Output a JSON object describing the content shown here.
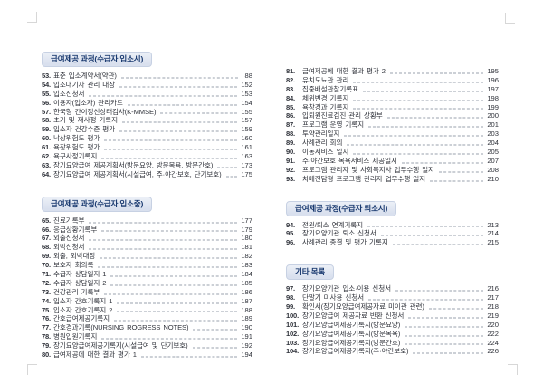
{
  "colors": {
    "section_header_bg": "#d9e0ee",
    "section_header_text": "#1a3a70",
    "body_text": "#2f323a",
    "leader_dots": "#9aa2ad"
  },
  "pages": [
    {
      "side": "left",
      "sections": [
        {
          "title": "급여제공 과정(수급자 입소시)",
          "items": [
            {
              "no": "53.",
              "title": "표준 입소계약서(약관)",
              "page": "88"
            },
            {
              "no": "54.",
              "title": "입소대기자 관리 대장",
              "page": "152"
            },
            {
              "no": "55.",
              "title": "입소신청서",
              "page": "153"
            },
            {
              "no": "56.",
              "title": "이용자(입소자) 관리카드",
              "page": "154"
            },
            {
              "no": "57.",
              "title": "한국형 간이정신상태검사(K-MMSE)",
              "page": "155"
            },
            {
              "no": "58.",
              "title": "초기 및 재사정 기록지",
              "page": "157"
            },
            {
              "no": "59.",
              "title": "입소자 건강수준 평가",
              "page": "159"
            },
            {
              "no": "60.",
              "title": "낙상위험도 평가",
              "page": "160"
            },
            {
              "no": "61.",
              "title": "욕창위험도 평가",
              "page": "161"
            },
            {
              "no": "62.",
              "title": "욕구사정기록지",
              "page": "163"
            },
            {
              "no": "63.",
              "title": "장기요양급여 제공계획서(방문요양, 방문목욕, 방문간호)",
              "page": "173"
            },
            {
              "no": "64.",
              "title": "장기요양급여 제공계획서(시설급여, 주·야간보호, 단기보호)",
              "page": "175"
            }
          ]
        },
        {
          "title": "급여제공 과정(수급자 입소중)",
          "items": [
            {
              "no": "65.",
              "title": "진료기록부",
              "page": "177"
            },
            {
              "no": "66.",
              "title": "응급상황기록부",
              "page": "179"
            },
            {
              "no": "67.",
              "title": "외출신청서",
              "page": "180"
            },
            {
              "no": "68.",
              "title": "외박신청서",
              "page": "181"
            },
            {
              "no": "69.",
              "title": "외출, 외박대장",
              "page": "182"
            },
            {
              "no": "70.",
              "title": "보호자 회의록",
              "page": "183"
            },
            {
              "no": "71.",
              "title": "수급자 상담일지 1",
              "page": "184"
            },
            {
              "no": "72.",
              "title": "수급자 상담일지 2",
              "page": "185"
            },
            {
              "no": "73.",
              "title": "건강관리 기록부",
              "page": "186"
            },
            {
              "no": "74.",
              "title": "입소자 간호기록지 1",
              "page": "187"
            },
            {
              "no": "75.",
              "title": "입소자 간호기록지 2",
              "page": "188"
            },
            {
              "no": "76.",
              "title": "간호급여제공기록지",
              "page": "189"
            },
            {
              "no": "77.",
              "title": "간호경과기록(NURSING ROGRESS NOTES)",
              "page": "190"
            },
            {
              "no": "78.",
              "title": "병원입원기록지",
              "page": "191"
            },
            {
              "no": "79.",
              "title": "장기요양급여제공기록지(시설급여 및 단기보호)",
              "page": "192"
            },
            {
              "no": "80.",
              "title": "급여제공에 대한 결과 평가 1",
              "page": "194"
            }
          ]
        }
      ]
    },
    {
      "side": "right",
      "sections": [
        {
          "title": "",
          "items": [
            {
              "no": "81.",
              "title": "급여제공에 대한 결과 평가 2",
              "page": "195"
            },
            {
              "no": "82.",
              "title": "유치도뇨관 관리",
              "page": "196"
            },
            {
              "no": "83.",
              "title": "집중배설관찰기록표",
              "page": "197"
            },
            {
              "no": "84.",
              "title": "체위변경 기록지",
              "page": "198"
            },
            {
              "no": "85.",
              "title": "욕창경과 기록지",
              "page": "199"
            },
            {
              "no": "86.",
              "title": "입퇴원진료검진 관리 상황부",
              "page": "200"
            },
            {
              "no": "87.",
              "title": "프로그램 운영 기록지",
              "page": "201"
            },
            {
              "no": "88.",
              "title": "투약관리일지",
              "page": "203"
            },
            {
              "no": "89.",
              "title": "사례관리 회의",
              "page": "204"
            },
            {
              "no": "90.",
              "title": "이동서비스 일지",
              "page": "205"
            },
            {
              "no": "91.",
              "title": "주·야간보호 목욕서비스 제공일지",
              "page": "207"
            },
            {
              "no": "92.",
              "title": "프로그램 관리자 및 사회복지사 업무수행 일지",
              "page": "208"
            },
            {
              "no": "93.",
              "title": "치매전담형 프로그램 관리자 업무수행 일지",
              "page": "210"
            }
          ]
        },
        {
          "title": "급여제공 과정(수급자 퇴소시)",
          "items": [
            {
              "no": "94.",
              "title": "전원/퇴소 연계기록지",
              "page": "213"
            },
            {
              "no": "95.",
              "title": "장기요양기관 퇴소 신청서",
              "page": "214"
            },
            {
              "no": "96.",
              "title": "사례관리 종결 및 평가 기록지",
              "page": "215"
            }
          ]
        },
        {
          "title": "기타 목록",
          "items": [
            {
              "no": "97.",
              "title": "장기요양기관 입소·이용 신청서",
              "page": "216"
            },
            {
              "no": "98.",
              "title": "단말기 미사용 신청서",
              "page": "217"
            },
            {
              "no": "99.",
              "title": "확인서(장기요양급여제공자료 미이관 관련)",
              "page": "218"
            },
            {
              "no": "100.",
              "title": "장기요양급여 제공자료 반환 신청서",
              "page": "219"
            },
            {
              "no": "101.",
              "title": "장기요양급여제공기록지(방문요양)",
              "page": "220"
            },
            {
              "no": "102.",
              "title": "장기요양급여제공기록지(방문목욕)",
              "page": "222"
            },
            {
              "no": "103.",
              "title": "장기요양급여제공기록지(방문간호)",
              "page": "224"
            },
            {
              "no": "104.",
              "title": "장기요양급여제공기록지(주·야간보호)",
              "page": "226"
            }
          ]
        }
      ]
    }
  ]
}
